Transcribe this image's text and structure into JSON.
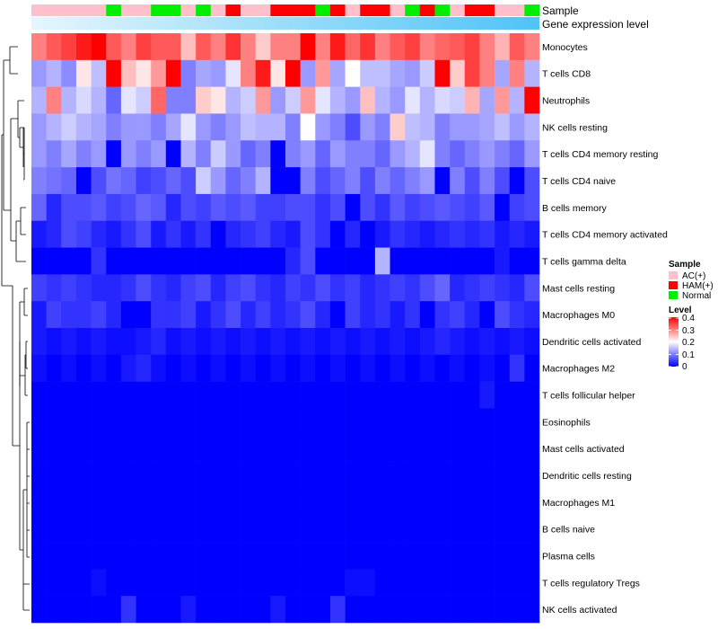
{
  "chart_data": {
    "type": "heatmap",
    "title": "",
    "annotation_labels": [
      "Sample",
      "Gene expression level"
    ],
    "rows": [
      "Monocytes",
      "T cells CD8",
      "Neutrophils",
      "NK cells resting",
      "T cells CD4 memory resting",
      "T cells CD4 naive",
      "B cells memory",
      "T cells CD4 memory activated",
      "T cells gamma delta",
      "Mast cells resting",
      "Macrophages M0",
      "Dendritic cells activated",
      "Macrophages M2",
      "T cells follicular helper",
      "Eosinophils",
      "Mast cells activated",
      "Dendritic cells resting",
      "Macrophages M1",
      "B cells naive",
      "Plasma cells",
      "T cells regulatory  Tregs",
      "NK cells activated"
    ],
    "sample_groups": [
      "AC(+)",
      "AC(+)",
      "AC(+)",
      "AC(+)",
      "AC(+)",
      "Normal",
      "AC(+)",
      "AC(+)",
      "Normal",
      "Normal",
      "AC(+)",
      "Normal",
      "AC(+)",
      "HAM(+)",
      "AC(+)",
      "AC(+)",
      "HAM(+)",
      "HAM(+)",
      "HAM(+)",
      "Normal",
      "HAM(+)",
      "AC(+)",
      "HAM(+)",
      "HAM(+)",
      "AC(+)",
      "Normal",
      "HAM(+)",
      "Normal",
      "AC(+)",
      "HAM(+)",
      "HAM(+)",
      "AC(+)",
      "AC(+)",
      "Normal"
    ],
    "values": [
      [
        0.3,
        0.33,
        0.35,
        0.38,
        0.4,
        0.33,
        0.3,
        0.35,
        0.33,
        0.33,
        0.25,
        0.33,
        0.3,
        0.36,
        0.3,
        0.24,
        0.3,
        0.3,
        0.4,
        0.3,
        0.38,
        0.32,
        0.36,
        0.3,
        0.33,
        0.35,
        0.3,
        0.32,
        0.33,
        0.35,
        0.3,
        0.26,
        0.33,
        0.3
      ],
      [
        0.12,
        0.14,
        0.11,
        0.22,
        0.15,
        0.4,
        0.25,
        0.22,
        0.28,
        0.4,
        0.1,
        0.13,
        0.12,
        0.18,
        0.3,
        0.38,
        0.22,
        0.4,
        0.12,
        0.28,
        0.13,
        0.2,
        0.15,
        0.15,
        0.13,
        0.12,
        0.16,
        0.4,
        0.24,
        0.35,
        0.3,
        0.13,
        0.3,
        0.14
      ],
      [
        0.14,
        0.3,
        0.14,
        0.17,
        0.14,
        0.08,
        0.18,
        0.16,
        0.32,
        0.1,
        0.1,
        0.24,
        0.22,
        0.14,
        0.16,
        0.28,
        0.12,
        0.16,
        0.28,
        0.18,
        0.14,
        0.12,
        0.25,
        0.14,
        0.12,
        0.18,
        0.14,
        0.17,
        0.16,
        0.26,
        0.13,
        0.28,
        0.14,
        0.4
      ],
      [
        0.12,
        0.14,
        0.16,
        0.14,
        0.13,
        0.1,
        0.12,
        0.12,
        0.1,
        0.13,
        0.18,
        0.12,
        0.1,
        0.12,
        0.15,
        0.14,
        0.14,
        0.1,
        0.2,
        0.12,
        0.1,
        0.06,
        0.12,
        0.1,
        0.24,
        0.15,
        0.14,
        0.1,
        0.12,
        0.12,
        0.13,
        0.15,
        0.12,
        0.14
      ],
      [
        0.12,
        0.1,
        0.13,
        0.1,
        0.12,
        0.0,
        0.12,
        0.1,
        0.12,
        0.0,
        0.14,
        0.1,
        0.16,
        0.12,
        0.08,
        0.1,
        0.0,
        0.1,
        0.12,
        0.08,
        0.12,
        0.1,
        0.1,
        0.08,
        0.12,
        0.14,
        0.18,
        0.1,
        0.08,
        0.1,
        0.12,
        0.1,
        0.08,
        0.12
      ],
      [
        0.1,
        0.09,
        0.08,
        0.0,
        0.06,
        0.09,
        0.08,
        0.05,
        0.06,
        0.08,
        0.06,
        0.16,
        0.12,
        0.08,
        0.1,
        0.14,
        0.0,
        0.0,
        0.1,
        0.06,
        0.08,
        0.1,
        0.06,
        0.1,
        0.08,
        0.1,
        0.12,
        0.0,
        0.1,
        0.06,
        0.1,
        0.06,
        0.0,
        0.06
      ],
      [
        0.08,
        0.03,
        0.06,
        0.06,
        0.07,
        0.05,
        0.06,
        0.08,
        0.07,
        0.03,
        0.06,
        0.05,
        0.07,
        0.06,
        0.07,
        0.05,
        0.05,
        0.06,
        0.06,
        0.04,
        0.06,
        0.0,
        0.06,
        0.04,
        0.07,
        0.05,
        0.06,
        0.07,
        0.06,
        0.05,
        0.07,
        0.0,
        0.05,
        0.06
      ],
      [
        0.02,
        0.03,
        0.06,
        0.05,
        0.03,
        0.02,
        0.04,
        0.06,
        0.02,
        0.04,
        0.02,
        0.04,
        0.0,
        0.03,
        0.04,
        0.05,
        0.03,
        0.02,
        0.06,
        0.04,
        0.0,
        0.03,
        0.0,
        0.02,
        0.04,
        0.03,
        0.02,
        0.03,
        0.04,
        0.03,
        0.04,
        0.02,
        0.03,
        0.02
      ],
      [
        0.0,
        0.0,
        0.0,
        0.0,
        0.04,
        0.0,
        0.0,
        0.0,
        0.0,
        0.0,
        0.0,
        0.0,
        0.0,
        0.0,
        0.0,
        0.0,
        0.0,
        0.03,
        0.06,
        0.0,
        0.0,
        0.0,
        0.0,
        0.14,
        0.0,
        0.0,
        0.0,
        0.0,
        0.0,
        0.0,
        0.0,
        0.02,
        0.0,
        0.0
      ],
      [
        0.05,
        0.04,
        0.05,
        0.04,
        0.03,
        0.03,
        0.04,
        0.06,
        0.04,
        0.03,
        0.05,
        0.06,
        0.03,
        0.05,
        0.06,
        0.04,
        0.03,
        0.05,
        0.04,
        0.06,
        0.04,
        0.05,
        0.03,
        0.04,
        0.05,
        0.04,
        0.06,
        0.08,
        0.03,
        0.04,
        0.05,
        0.04,
        0.03,
        0.06
      ],
      [
        0.02,
        0.05,
        0.04,
        0.04,
        0.05,
        0.03,
        0.0,
        0.0,
        0.04,
        0.04,
        0.05,
        0.02,
        0.04,
        0.06,
        0.03,
        0.05,
        0.03,
        0.04,
        0.06,
        0.03,
        0.0,
        0.05,
        0.03,
        0.04,
        0.02,
        0.04,
        0.0,
        0.04,
        0.05,
        0.03,
        0.0,
        0.06,
        0.04,
        0.03
      ],
      [
        0.02,
        0.01,
        0.02,
        0.01,
        0.02,
        0.01,
        0.01,
        0.02,
        0.03,
        0.01,
        0.02,
        0.01,
        0.02,
        0.01,
        0.02,
        0.01,
        0.02,
        0.01,
        0.02,
        0.01,
        0.02,
        0.01,
        0.02,
        0.01,
        0.02,
        0.01,
        0.02,
        0.03,
        0.02,
        0.01,
        0.02,
        0.01,
        0.02,
        0.01
      ],
      [
        0.01,
        0.0,
        0.01,
        0.0,
        0.01,
        0.0,
        0.02,
        0.03,
        0.01,
        0.0,
        0.01,
        0.0,
        0.01,
        0.0,
        0.01,
        0.0,
        0.01,
        0.0,
        0.01,
        0.0,
        0.01,
        0.0,
        0.01,
        0.0,
        0.01,
        0.0,
        0.01,
        0.0,
        0.01,
        0.0,
        0.01,
        0.0,
        0.04,
        0.0
      ],
      [
        0.0,
        0.0,
        0.0,
        0.0,
        0.0,
        0.0,
        0.0,
        0.0,
        0.0,
        0.0,
        0.0,
        0.0,
        0.0,
        0.0,
        0.0,
        0.0,
        0.0,
        0.0,
        0.0,
        0.0,
        0.0,
        0.0,
        0.0,
        0.0,
        0.0,
        0.0,
        0.0,
        0.0,
        0.0,
        0.0,
        0.02,
        0.0,
        0.0,
        0.0
      ],
      [
        0.0,
        0.0,
        0.0,
        0.0,
        0.0,
        0.0,
        0.0,
        0.0,
        0.0,
        0.0,
        0.0,
        0.0,
        0.0,
        0.0,
        0.0,
        0.0,
        0.0,
        0.0,
        0.0,
        0.0,
        0.0,
        0.0,
        0.0,
        0.0,
        0.0,
        0.0,
        0.0,
        0.0,
        0.0,
        0.0,
        0.0,
        0.0,
        0.0,
        0.0
      ],
      [
        0.0,
        0.0,
        0.0,
        0.0,
        0.0,
        0.0,
        0.0,
        0.0,
        0.0,
        0.0,
        0.0,
        0.0,
        0.0,
        0.0,
        0.0,
        0.0,
        0.0,
        0.0,
        0.0,
        0.0,
        0.0,
        0.0,
        0.0,
        0.0,
        0.0,
        0.0,
        0.0,
        0.0,
        0.0,
        0.0,
        0.0,
        0.0,
        0.0,
        0.0
      ],
      [
        0.0,
        0.0,
        0.0,
        0.0,
        0.0,
        0.0,
        0.0,
        0.0,
        0.0,
        0.0,
        0.0,
        0.0,
        0.0,
        0.0,
        0.0,
        0.0,
        0.0,
        0.0,
        0.0,
        0.0,
        0.0,
        0.0,
        0.0,
        0.0,
        0.0,
        0.0,
        0.0,
        0.0,
        0.0,
        0.0,
        0.0,
        0.0,
        0.0,
        0.0
      ],
      [
        0.0,
        0.0,
        0.0,
        0.0,
        0.0,
        0.0,
        0.0,
        0.0,
        0.0,
        0.0,
        0.0,
        0.0,
        0.0,
        0.0,
        0.0,
        0.0,
        0.0,
        0.0,
        0.0,
        0.0,
        0.0,
        0.0,
        0.0,
        0.0,
        0.0,
        0.0,
        0.0,
        0.0,
        0.0,
        0.0,
        0.0,
        0.0,
        0.0,
        0.0
      ],
      [
        0.0,
        0.0,
        0.0,
        0.0,
        0.0,
        0.0,
        0.0,
        0.0,
        0.0,
        0.0,
        0.0,
        0.0,
        0.0,
        0.0,
        0.0,
        0.0,
        0.0,
        0.0,
        0.0,
        0.0,
        0.0,
        0.0,
        0.0,
        0.0,
        0.0,
        0.0,
        0.0,
        0.0,
        0.0,
        0.0,
        0.0,
        0.0,
        0.0,
        0.0
      ],
      [
        0.0,
        0.0,
        0.0,
        0.0,
        0.0,
        0.0,
        0.0,
        0.0,
        0.0,
        0.0,
        0.0,
        0.0,
        0.0,
        0.0,
        0.0,
        0.0,
        0.0,
        0.0,
        0.0,
        0.0,
        0.0,
        0.0,
        0.0,
        0.0,
        0.0,
        0.0,
        0.0,
        0.0,
        0.0,
        0.0,
        0.0,
        0.0,
        0.0,
        0.0
      ],
      [
        0.0,
        0.0,
        0.0,
        0.0,
        0.01,
        0.0,
        0.0,
        0.0,
        0.0,
        0.0,
        0.0,
        0.0,
        0.0,
        0.0,
        0.0,
        0.0,
        0.0,
        0.0,
        0.0,
        0.0,
        0.0,
        0.01,
        0.01,
        0.0,
        0.0,
        0.0,
        0.0,
        0.0,
        0.0,
        0.0,
        0.0,
        0.0,
        0.0,
        0.0
      ],
      [
        0.0,
        0.0,
        0.0,
        0.0,
        0.0,
        0.0,
        0.04,
        0.0,
        0.0,
        0.0,
        0.02,
        0.0,
        0.0,
        0.0,
        0.0,
        0.0,
        0.02,
        0.0,
        0.0,
        0.0,
        0.04,
        0.0,
        0.0,
        0.0,
        0.0,
        0.0,
        0.0,
        0.0,
        0.0,
        0.0,
        0.0,
        0.0,
        0.0,
        0.0
      ]
    ],
    "sample_legend": {
      "title": "Sample",
      "entries": [
        {
          "label": "AC(+)",
          "color": "#ffc0cb"
        },
        {
          "label": "HAM(+)",
          "color": "#ff0000"
        },
        {
          "label": "Normal",
          "color": "#00ee00"
        }
      ]
    },
    "color_scale": {
      "title": "Level",
      "min": 0,
      "max": 0.4,
      "ticks": [
        "0.4",
        "0.3",
        "0.2",
        "0.1",
        "0"
      ],
      "low_color": "#0000ff",
      "mid_color": "#ffffff",
      "high_color": "#ff0000"
    },
    "gene_expression_bar_colors": [
      "#e0f3fb",
      "#4fc3f7"
    ]
  }
}
